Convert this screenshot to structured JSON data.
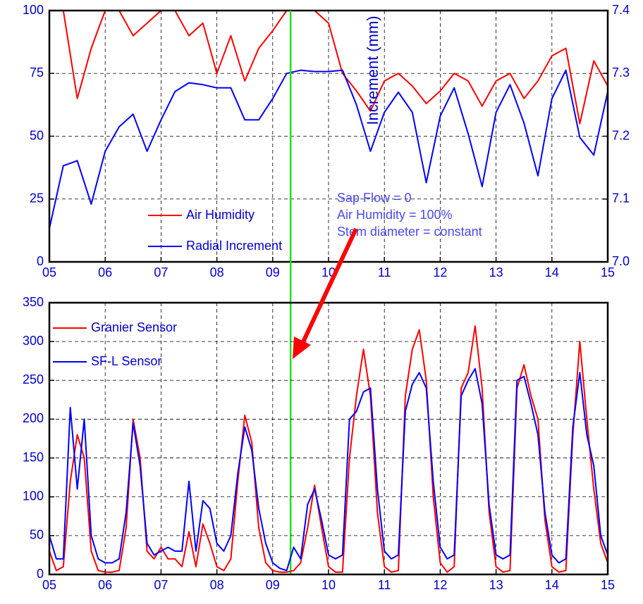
{
  "chart_data": [
    {
      "type": "line",
      "x": [
        5,
        5.25,
        5.5,
        5.75,
        6,
        6.25,
        6.5,
        6.75,
        7,
        7.25,
        7.5,
        7.75,
        8,
        8.25,
        8.5,
        8.75,
        9,
        9.25,
        9.5,
        9.75,
        10,
        10.25,
        10.5,
        10.75,
        11,
        11.25,
        11.5,
        11.75,
        12,
        12.25,
        12.5,
        12.75,
        13,
        13.25,
        13.5,
        13.75,
        14,
        14.25,
        14.5,
        14.75,
        15
      ],
      "xlim": [
        5,
        15
      ],
      "xticks": [
        {
          "value": 5,
          "label": "05"
        },
        {
          "value": 6,
          "label": "06"
        },
        {
          "value": 7,
          "label": "07"
        },
        {
          "value": 8,
          "label": "08"
        },
        {
          "value": 9,
          "label": "09"
        },
        10,
        11,
        12,
        13,
        14,
        15
      ],
      "ylim": [
        0,
        100
      ],
      "yticks": [
        0,
        25,
        50,
        75,
        100
      ],
      "y2lim": [
        7.0,
        7.4
      ],
      "y2ticks": [
        {
          "value": 7,
          "label": "7.0"
        },
        7.1,
        7.2,
        7.3,
        7.4
      ],
      "y2label": "Increment (mm)",
      "grid": true,
      "legend": "lower center",
      "vline": 9.32,
      "annotation": [
        "Sap Flow = 0",
        "Air Humidity = 100%",
        "Stem diameter = constant"
      ],
      "series": [
        {
          "name": "Air Humidity",
          "color": "#ff0000",
          "values": [
            100,
            100,
            65,
            85,
            100,
            100,
            90,
            95,
            100,
            100,
            90,
            95,
            75,
            90,
            72,
            85,
            92,
            100,
            100,
            100,
            95,
            75,
            68,
            60,
            72,
            75,
            70,
            63,
            68,
            75,
            72,
            62,
            72,
            75,
            65,
            72,
            82,
            85,
            55,
            80,
            70
          ]
        },
        {
          "name": "Radial Increment",
          "color": "#0000ff",
          "axis": "y2",
          "values": [
            7.053,
            7.153,
            7.161,
            7.092,
            7.176,
            7.215,
            7.235,
            7.176,
            7.226,
            7.271,
            7.285,
            7.282,
            7.277,
            7.277,
            7.226,
            7.226,
            7.26,
            7.3,
            7.305,
            7.303,
            7.303,
            7.305,
            7.25,
            7.176,
            7.238,
            7.27,
            7.238,
            7.126,
            7.232,
            7.277,
            7.204,
            7.12,
            7.238,
            7.282,
            7.221,
            7.137,
            7.26,
            7.305,
            7.198,
            7.17,
            7.271
          ]
        }
      ]
    },
    {
      "type": "line",
      "x": [
        5,
        5.125,
        5.25,
        5.375,
        5.5,
        5.625,
        5.75,
        5.875,
        6,
        6.125,
        6.25,
        6.375,
        6.5,
        6.625,
        6.75,
        6.875,
        7,
        7.125,
        7.25,
        7.375,
        7.5,
        7.625,
        7.75,
        7.875,
        8,
        8.125,
        8.25,
        8.375,
        8.5,
        8.625,
        8.75,
        8.875,
        9,
        9.125,
        9.25,
        9.375,
        9.5,
        9.625,
        9.75,
        9.875,
        10,
        10.125,
        10.25,
        10.375,
        10.5,
        10.625,
        10.75,
        10.875,
        11,
        11.125,
        11.25,
        11.375,
        11.5,
        11.625,
        11.75,
        11.875,
        12,
        12.125,
        12.25,
        12.375,
        12.5,
        12.625,
        12.75,
        12.875,
        13,
        13.125,
        13.25,
        13.375,
        13.5,
        13.625,
        13.75,
        13.875,
        14,
        14.125,
        14.25,
        14.375,
        14.5,
        14.625,
        14.75,
        14.875,
        15
      ],
      "xlim": [
        5,
        15
      ],
      "xticks": [
        {
          "value": 5,
          "label": "05"
        },
        {
          "value": 6,
          "label": "06"
        },
        {
          "value": 7,
          "label": "07"
        },
        {
          "value": 8,
          "label": "08"
        },
        {
          "value": 9,
          "label": "09"
        },
        10,
        11,
        12,
        13,
        14,
        15
      ],
      "ylim": [
        0,
        350
      ],
      "yticks": [
        0,
        50,
        100,
        150,
        200,
        250,
        300,
        350
      ],
      "grid": true,
      "legend": "upper left",
      "series": [
        {
          "name": "Granier Sensor",
          "color": "#ff0000",
          "values": [
            30,
            5,
            10,
            120,
            180,
            150,
            30,
            5,
            3,
            3,
            5,
            60,
            200,
            150,
            30,
            20,
            35,
            20,
            20,
            10,
            55,
            10,
            65,
            40,
            10,
            5,
            20,
            120,
            205,
            170,
            60,
            15,
            5,
            3,
            3,
            5,
            15,
            60,
            115,
            60,
            10,
            3,
            3,
            150,
            230,
            290,
            230,
            80,
            10,
            3,
            5,
            230,
            290,
            315,
            250,
            100,
            15,
            3,
            10,
            240,
            260,
            320,
            240,
            80,
            10,
            3,
            5,
            240,
            270,
            230,
            200,
            70,
            10,
            3,
            5,
            180,
            300,
            200,
            110,
            40,
            15
          ]
        },
        {
          "name": "SF-L Sensor",
          "color": "#0000ff",
          "values": [
            50,
            20,
            20,
            215,
            110,
            200,
            50,
            20,
            15,
            15,
            20,
            80,
            195,
            140,
            40,
            25,
            30,
            35,
            30,
            30,
            120,
            30,
            95,
            85,
            40,
            30,
            50,
            130,
            190,
            160,
            85,
            40,
            15,
            8,
            5,
            35,
            20,
            90,
            110,
            70,
            25,
            20,
            25,
            200,
            210,
            235,
            240,
            110,
            30,
            20,
            25,
            210,
            245,
            260,
            240,
            120,
            35,
            20,
            25,
            230,
            250,
            265,
            220,
            90,
            25,
            20,
            25,
            250,
            255,
            220,
            180,
            80,
            25,
            15,
            20,
            190,
            260,
            180,
            140,
            50,
            25
          ]
        }
      ]
    }
  ]
}
